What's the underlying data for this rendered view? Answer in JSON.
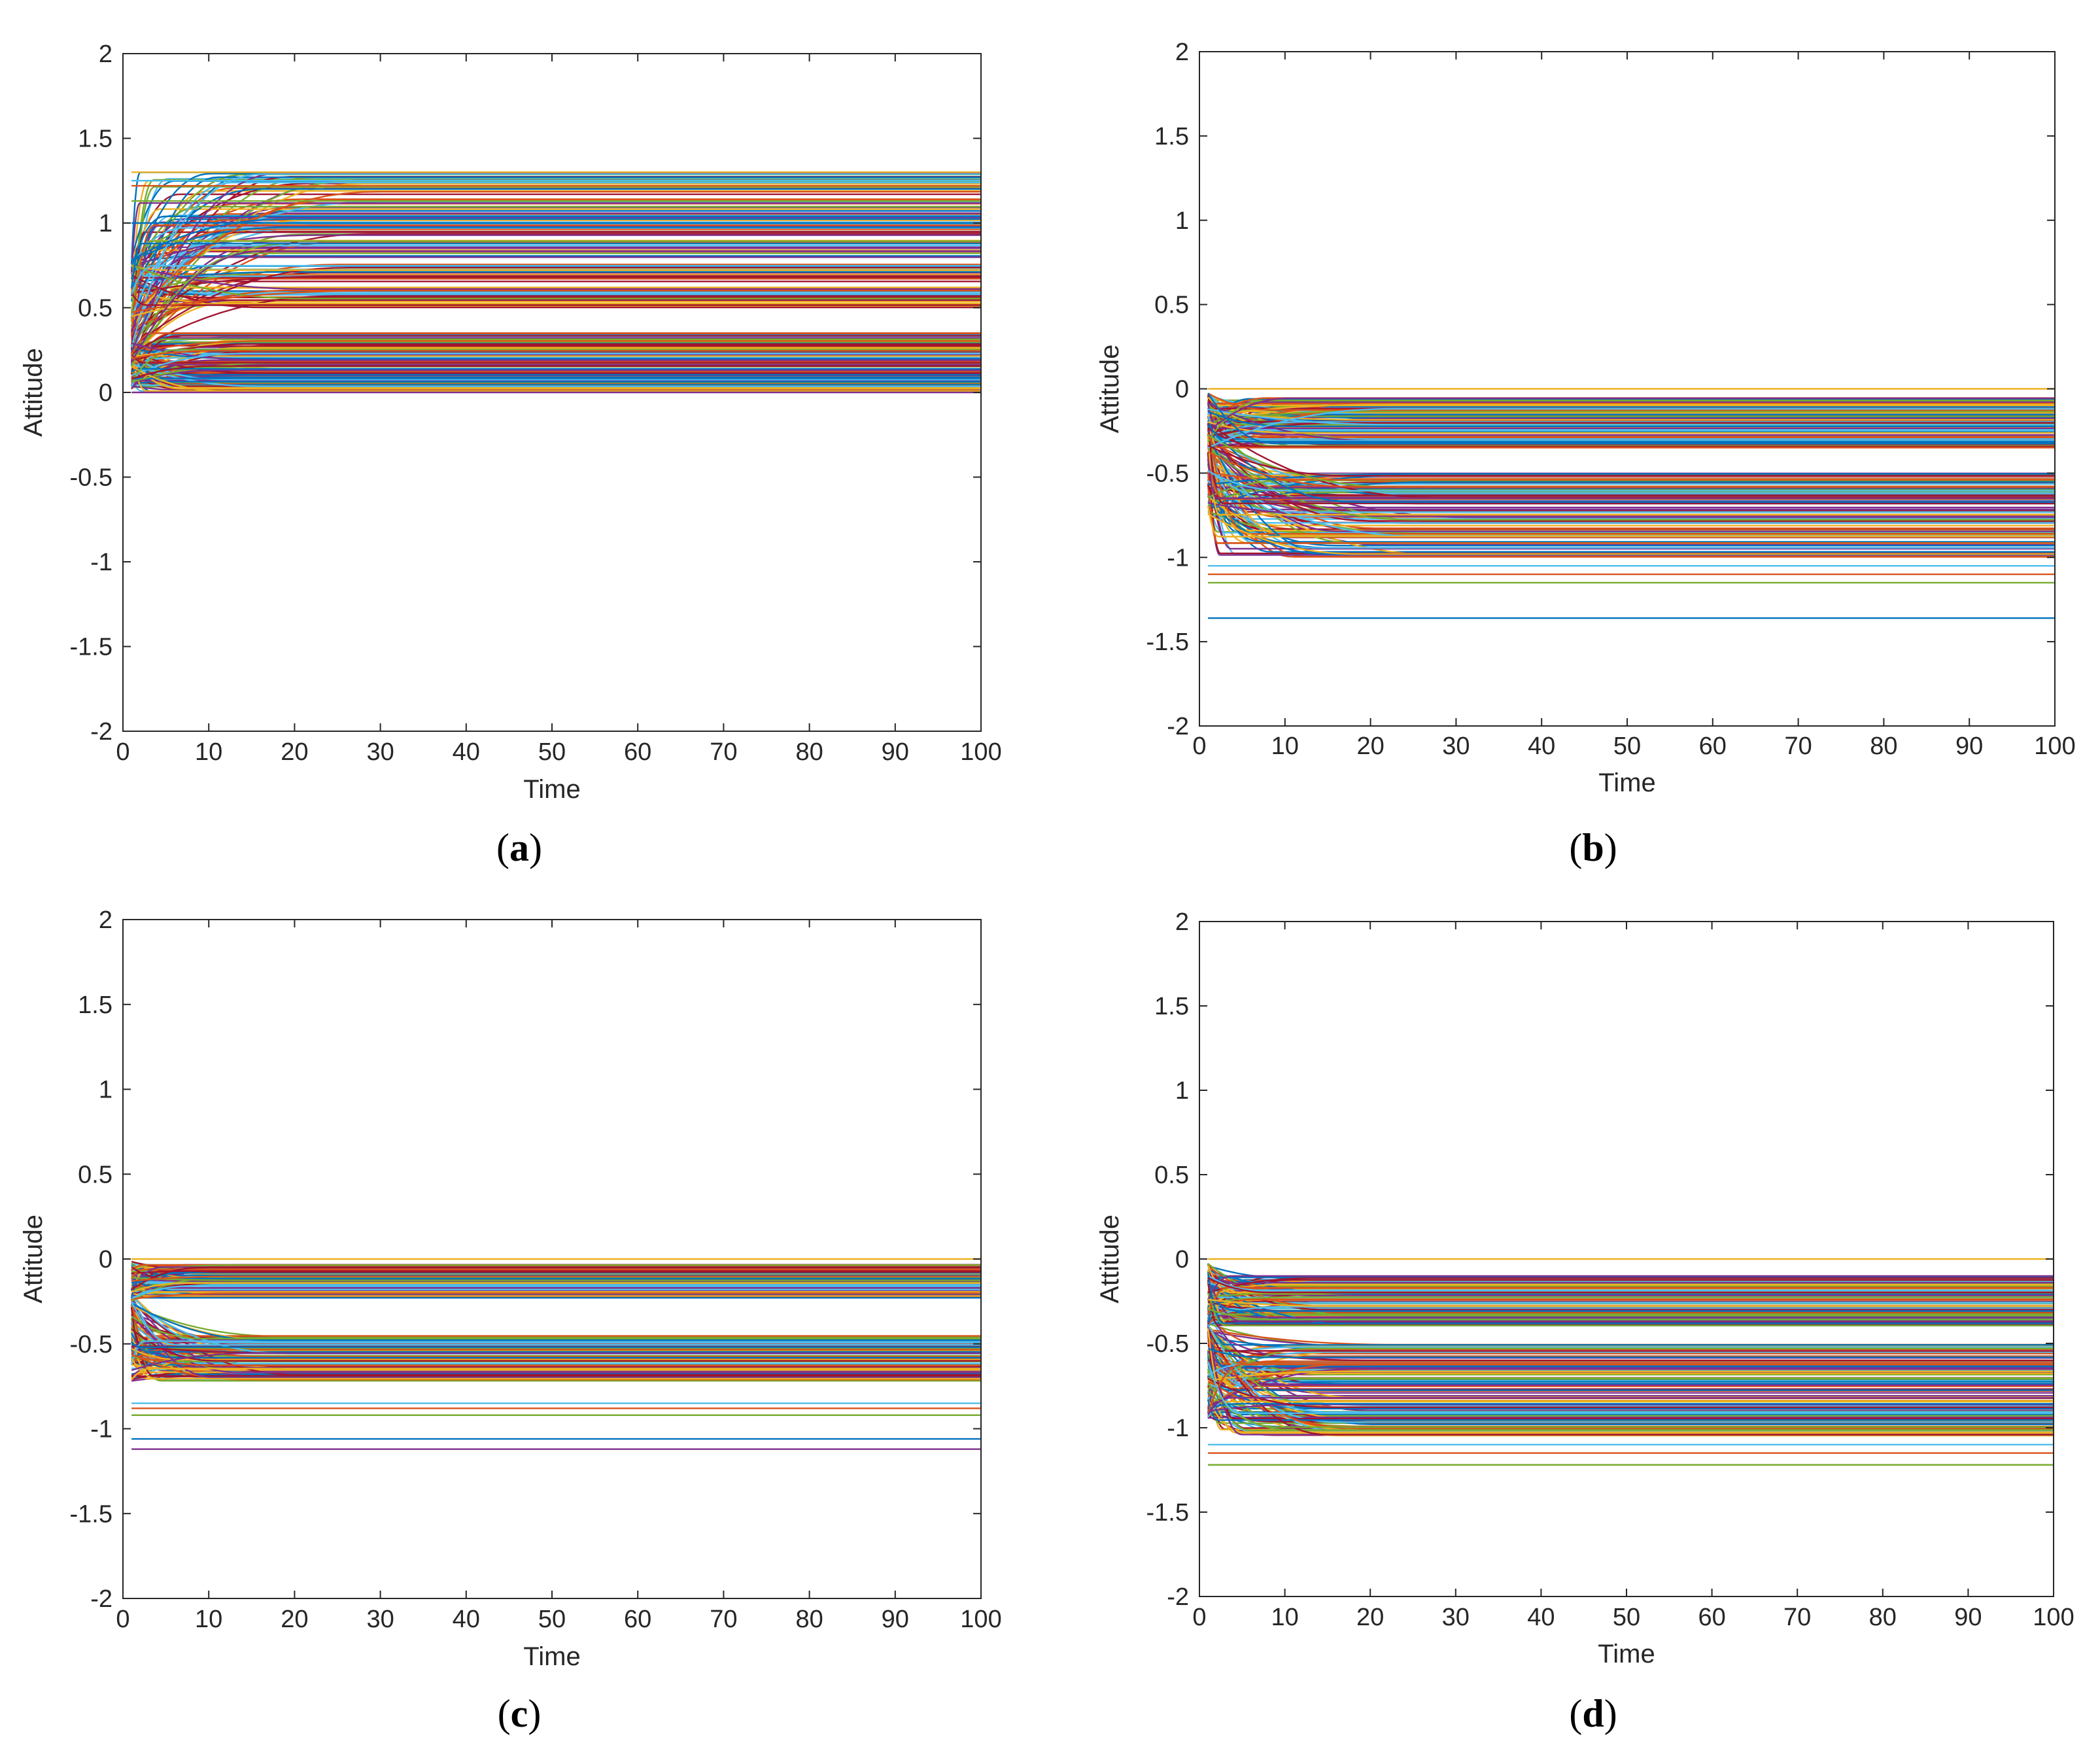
{
  "figure": {
    "panel_layout": "2x2 grid",
    "line_palette": [
      "#0072BD",
      "#D95319",
      "#EDB120",
      "#7E2F8E",
      "#77AC30",
      "#4DBEEE",
      "#A2142F"
    ]
  },
  "chart_data": [
    {
      "id": "a",
      "type": "line",
      "caption": {
        "open": "(",
        "letter": "a",
        "close": ")"
      },
      "xlabel": "Time",
      "ylabel": "Attitude",
      "xlim": [
        0,
        100
      ],
      "ylim": [
        -2,
        2
      ],
      "xticks": [
        0,
        10,
        20,
        30,
        40,
        50,
        60,
        70,
        80,
        90,
        100
      ],
      "xtick_labels": [
        "0",
        "10",
        "20",
        "30",
        "40",
        "50",
        "60",
        "70",
        "80",
        "90",
        "100"
      ],
      "yticks": [
        2,
        1.5,
        1,
        0.5,
        0,
        -0.5,
        -1,
        -1.5,
        -2
      ],
      "ytick_labels": [
        "2",
        "1.5",
        "1",
        "0.5",
        "0",
        "-0.5",
        "-1",
        "-1.5",
        "-2"
      ],
      "line_count": 240,
      "series_summary": [
        {
          "name": "upper cluster",
          "initial_range": [
            0.15,
            0.8
          ],
          "final_range": [
            0.5,
            1.3
          ],
          "settle_time_max": 30
        },
        {
          "name": "lower cluster",
          "initial_range": [
            0.02,
            0.3
          ],
          "final_range": [
            0.0,
            0.35
          ],
          "settle_time_max": 20
        }
      ],
      "outlier_final_values": [
        1.3,
        1.25,
        1.22,
        1.13,
        1.0,
        0.0
      ]
    },
    {
      "id": "b",
      "type": "line",
      "caption": {
        "open": "(",
        "letter": "b",
        "close": ")"
      },
      "xlabel": "Time",
      "ylabel": "Attitude",
      "xlim": [
        0,
        100
      ],
      "ylim": [
        -2,
        2
      ],
      "xticks": [
        0,
        10,
        20,
        30,
        40,
        50,
        60,
        70,
        80,
        90,
        100
      ],
      "xtick_labels": [
        "0",
        "10",
        "20",
        "30",
        "40",
        "50",
        "60",
        "70",
        "80",
        "90",
        "100"
      ],
      "yticks": [
        2,
        1.5,
        1,
        0.5,
        0,
        -0.5,
        -1,
        -1.5,
        -2
      ],
      "ytick_labels": [
        "2",
        "1.5",
        "1",
        "0.5",
        "0",
        "-0.5",
        "-1",
        "-1.5",
        "-2"
      ],
      "line_count": 240,
      "series_summary": [
        {
          "name": "upper cluster",
          "initial_range": [
            -0.35,
            -0.02
          ],
          "final_range": [
            -0.35,
            -0.05
          ],
          "settle_time_max": 25
        },
        {
          "name": "lower cluster",
          "initial_range": [
            -0.75,
            -0.2
          ],
          "final_range": [
            -1.0,
            -0.5
          ],
          "settle_time_max": 32
        }
      ],
      "outlier_final_values": [
        0.0,
        -1.05,
        -1.1,
        -1.15,
        -1.36
      ]
    },
    {
      "id": "c",
      "type": "line",
      "caption": {
        "open": "(",
        "letter": "c",
        "close": ")"
      },
      "xlabel": "Time",
      "ylabel": "Attitude",
      "xlim": [
        0,
        100
      ],
      "ylim": [
        -2,
        2
      ],
      "xticks": [
        0,
        10,
        20,
        30,
        40,
        50,
        60,
        70,
        80,
        90,
        100
      ],
      "xtick_labels": [
        "0",
        "10",
        "20",
        "30",
        "40",
        "50",
        "60",
        "70",
        "80",
        "90",
        "100"
      ],
      "yticks": [
        2,
        1.5,
        1,
        0.5,
        0,
        -0.5,
        -1,
        -1.5,
        -2
      ],
      "ytick_labels": [
        "2",
        "1.5",
        "1",
        "0.5",
        "0",
        "-0.5",
        "-1",
        "-1.5",
        "-2"
      ],
      "line_count": 220,
      "series_summary": [
        {
          "name": "upper cluster",
          "initial_range": [
            -0.25,
            -0.01
          ],
          "final_range": [
            -0.23,
            -0.03
          ],
          "settle_time_max": 15
        },
        {
          "name": "lower cluster",
          "initial_range": [
            -0.72,
            -0.2
          ],
          "final_range": [
            -0.72,
            -0.45
          ],
          "settle_time_max": 21
        }
      ],
      "outlier_final_values": [
        0.0,
        -0.85,
        -0.88,
        -0.92,
        -1.06,
        -1.12
      ]
    },
    {
      "id": "d",
      "type": "line",
      "caption": {
        "open": "(",
        "letter": "d",
        "close": ")"
      },
      "xlabel": "Time",
      "ylabel": "Attitude",
      "xlim": [
        0,
        100
      ],
      "ylim": [
        -2,
        2
      ],
      "xticks": [
        0,
        10,
        20,
        30,
        40,
        50,
        60,
        70,
        80,
        90,
        100
      ],
      "xtick_labels": [
        "0",
        "10",
        "20",
        "30",
        "40",
        "50",
        "60",
        "70",
        "80",
        "90",
        "100"
      ],
      "yticks": [
        2,
        1.5,
        1,
        0.5,
        0,
        -0.5,
        -1,
        -1.5,
        -2
      ],
      "ytick_labels": [
        "2",
        "1.5",
        "1",
        "0.5",
        "0",
        "-0.5",
        "-1",
        "-1.5",
        "-2"
      ],
      "line_count": 260,
      "series_summary": [
        {
          "name": "upper cluster",
          "initial_range": [
            -0.4,
            -0.02
          ],
          "final_range": [
            -0.4,
            -0.1
          ],
          "settle_time_max": 20
        },
        {
          "name": "lower cluster",
          "initial_range": [
            -0.95,
            -0.3
          ],
          "final_range": [
            -1.05,
            -0.5
          ],
          "settle_time_max": 24
        }
      ],
      "outlier_final_values": [
        0.0,
        -1.1,
        -1.15,
        -1.22
      ]
    }
  ]
}
